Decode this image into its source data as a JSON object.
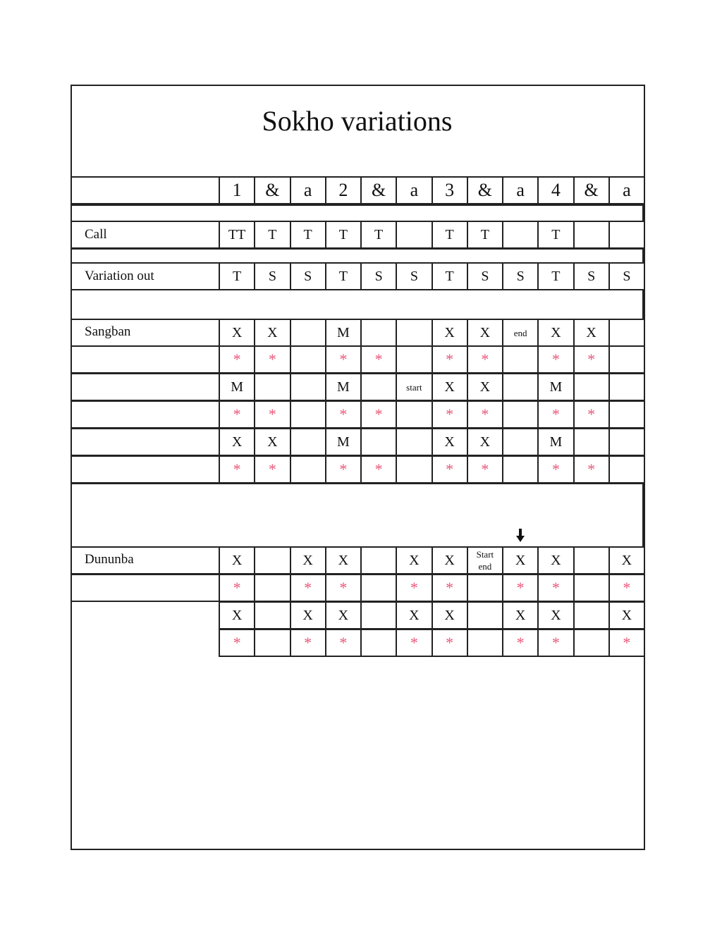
{
  "title": "Sokho variations",
  "colors": {
    "asterisk": "#e8587a",
    "lines": "#222222"
  },
  "beats": [
    "1",
    "&",
    "a",
    "2",
    "&",
    "a",
    "3",
    "&",
    "a",
    "4",
    "&",
    "a"
  ],
  "rows": [
    {
      "label": "Call",
      "cells": [
        "TT",
        "T",
        "T",
        "T",
        "T",
        "",
        "T",
        "T",
        "",
        "T",
        "",
        ""
      ]
    },
    {
      "label": "Variation out",
      "cells": [
        "T",
        "S",
        "S",
        "T",
        "S",
        "S",
        "T",
        "S",
        "S",
        "T",
        "S",
        "S"
      ]
    },
    {
      "label": "Sangban",
      "cells": [
        "X",
        "X",
        "",
        "M",
        "",
        "",
        "X",
        "X",
        "end",
        "X",
        "X",
        ""
      ]
    },
    {
      "label": "",
      "cells": [
        "*",
        "*",
        "",
        "*",
        "*",
        "",
        "*",
        "*",
        "",
        "*",
        "*",
        ""
      ]
    },
    {
      "label": "",
      "cells": [
        "M",
        "",
        "",
        "M",
        "",
        "start",
        "X",
        "X",
        "",
        "M",
        "",
        ""
      ]
    },
    {
      "label": "",
      "cells": [
        "*",
        "*",
        "",
        "*",
        "*",
        "",
        "*",
        "*",
        "",
        "*",
        "*",
        ""
      ]
    },
    {
      "label": "",
      "cells": [
        "X",
        "X",
        "",
        "M",
        "",
        "",
        "X",
        "X",
        "",
        "M",
        "",
        ""
      ]
    },
    {
      "label": "",
      "cells": [
        "*",
        "*",
        "",
        "*",
        "*",
        "",
        "*",
        "*",
        "",
        "*",
        "*",
        ""
      ]
    },
    {
      "label": "Dununba",
      "cells": [
        "X",
        "",
        "X",
        "X",
        "",
        "X",
        "X",
        "Start end",
        "X",
        "X",
        "",
        "X"
      ]
    },
    {
      "label": "",
      "cells": [
        "*",
        "",
        "*",
        "*",
        "",
        "*",
        "*",
        "",
        "*",
        "*",
        "",
        "*"
      ]
    },
    {
      "label": null,
      "cells": [
        "X",
        "",
        "X",
        "X",
        "",
        "X",
        "X",
        "",
        "X",
        "X",
        "",
        "X"
      ]
    },
    {
      "label": null,
      "cells": [
        "*",
        "",
        "*",
        "*",
        "",
        "*",
        "*",
        "",
        "*",
        "*",
        "",
        "*"
      ]
    }
  ],
  "marker": {
    "icon": "down-arrow-icon",
    "beat_index": 8
  }
}
